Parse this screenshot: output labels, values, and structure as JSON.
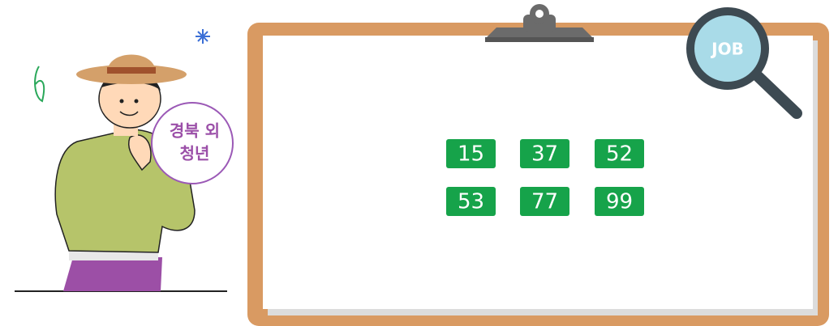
{
  "badge": {
    "lines": [
      "경북 외",
      "청년"
    ]
  },
  "magnifier": {
    "label": "JOB"
  },
  "numbers": [
    [
      15,
      37,
      52
    ],
    [
      53,
      77,
      99
    ]
  ]
}
